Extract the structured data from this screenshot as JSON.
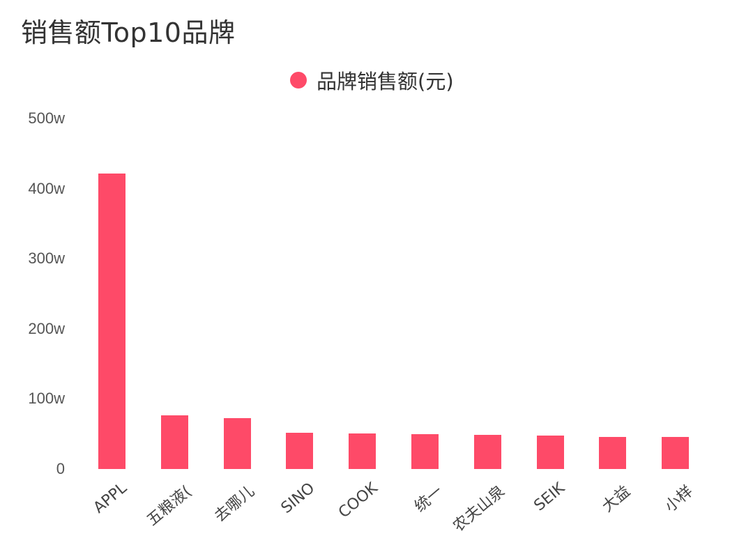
{
  "title": "销售额Top10品牌",
  "legend": {
    "label": "品牌销售额(元)",
    "color": "#fe4a68"
  },
  "bar_color": "#fe4a68",
  "y_ticks": [
    "0",
    "100w",
    "200w",
    "300w",
    "400w",
    "500w"
  ],
  "chart_data": {
    "type": "bar",
    "title": "销售额Top10品牌",
    "xlabel": "",
    "ylabel": "",
    "legend": [
      "品牌销售额(元)"
    ],
    "legend_position": "top",
    "grid": false,
    "ylim": [
      0,
      5000000
    ],
    "y_tick_labels": [
      "0",
      "100w",
      "200w",
      "300w",
      "400w",
      "500w"
    ],
    "categories": [
      "APPL",
      "五粮液(",
      "去哪儿",
      "SINO",
      "COOK",
      "统一",
      "农夫山泉",
      "SEIK",
      "大益",
      "小样"
    ],
    "series": [
      {
        "name": "品牌销售额(元)",
        "values": [
          4210000,
          770000,
          730000,
          520000,
          510000,
          500000,
          490000,
          480000,
          460000,
          460000
        ]
      }
    ]
  }
}
